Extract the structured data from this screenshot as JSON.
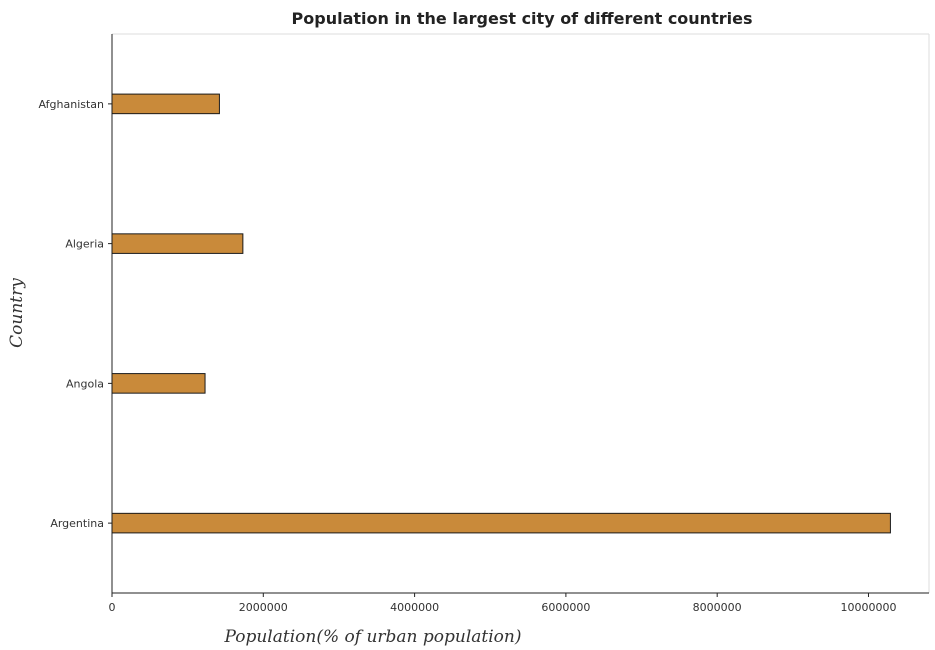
{
  "chart_data": {
    "type": "bar",
    "orientation": "horizontal",
    "title": "Population in the largest city of different countries",
    "xlabel": "Population(% of urban population)",
    "ylabel": "Country",
    "categories": [
      "Afghanistan",
      "Algeria",
      "Angola",
      "Argentina"
    ],
    "values": [
      1420000,
      1730000,
      1230000,
      10290000
    ],
    "xlim": [
      0,
      10800000
    ],
    "xticks": [
      0,
      2000000,
      4000000,
      6000000,
      8000000,
      10000000
    ],
    "xtick_labels": [
      "0",
      "2000000",
      "4000000",
      "6000000",
      "8000000",
      "10000000"
    ],
    "grid": false,
    "bar_color": "#c98a3a"
  }
}
